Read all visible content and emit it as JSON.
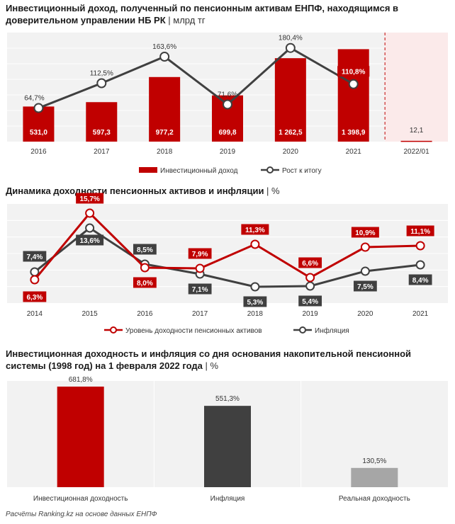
{
  "charts": {
    "income": {
      "title_main": "Инвестиционный доход, полученный по пенсионным активам ЕНПФ, находящимся в доверительном управлении НБ РК",
      "title_unit": " | млрд тг"
    },
    "dynamics": {
      "title_main": "Динамика доходности пенсионных активов и инфляции",
      "title_unit": " | %"
    },
    "cumulative": {
      "title_main": "Инвестиционная доходность и инфляция со дня основания накопительной пенсионной системы (1998 год) на 1 февраля 2022 года",
      "title_unit": " | %"
    }
  },
  "footnote": "Расчёты Ranking.kz на основе данных ЕНПФ",
  "colors": {
    "red": "#c00000",
    "dark": "#404040",
    "gray": "#a6a6a6",
    "panel": "#f2f2f2"
  },
  "chart_data": [
    {
      "type": "bar",
      "categories": [
        "2016",
        "2017",
        "2018",
        "2019",
        "2020",
        "2021",
        "2022/01"
      ],
      "series": [
        {
          "name": "Инвестиционный доход",
          "type": "bar",
          "values": [
            531.0,
            597.3,
            977.2,
            699.8,
            1262.5,
            1398.9,
            12.1
          ],
          "labels": [
            "531,0",
            "597,3",
            "977,2",
            "699,8",
            "1 262,5",
            "1 398,9",
            "12,1"
          ]
        },
        {
          "name": "Рост к итогу",
          "type": "line",
          "values": [
            64.7,
            112.5,
            163.6,
            71.6,
            180.4,
            110.8,
            null
          ],
          "labels": [
            "64,7%",
            "112,5%",
            "163,6%",
            "71,6%",
            "180,4%",
            "110,8%",
            ""
          ]
        }
      ],
      "ylim": [
        0,
        1650
      ],
      "y2lim": [
        0,
        210
      ],
      "grid": true,
      "legend": "bottom"
    },
    {
      "type": "line",
      "categories": [
        "2014",
        "2015",
        "2016",
        "2017",
        "2018",
        "2019",
        "2020",
        "2021"
      ],
      "series": [
        {
          "name": "Уровень доходности пенсионных активов",
          "values": [
            6.3,
            15.7,
            8.0,
            7.9,
            11.3,
            6.6,
            10.9,
            11.1
          ],
          "labels": [
            "6,3%",
            "15,7%",
            "8,0%",
            "7,9%",
            "11,3%",
            "6,6%",
            "10,9%",
            "11,1%"
          ]
        },
        {
          "name": "Инфляция",
          "values": [
            7.4,
            13.6,
            8.5,
            7.1,
            5.3,
            5.4,
            7.5,
            8.4
          ],
          "labels": [
            "7,4%",
            "13,6%",
            "8,5%",
            "7,1%",
            "5,3%",
            "5,4%",
            "7,5%",
            "8,4%"
          ]
        }
      ],
      "ylim": [
        3,
        17
      ],
      "grid": true,
      "legend": "bottom"
    },
    {
      "type": "bar",
      "categories": [
        "Инвестиционная доходность",
        "Инфляция",
        "Реальная доходность"
      ],
      "values": [
        681.8,
        551.3,
        130.5
      ],
      "labels": [
        "681,8%",
        "551,3%",
        "130,5%"
      ],
      "ylim": [
        0,
        720
      ],
      "grid": false
    }
  ]
}
